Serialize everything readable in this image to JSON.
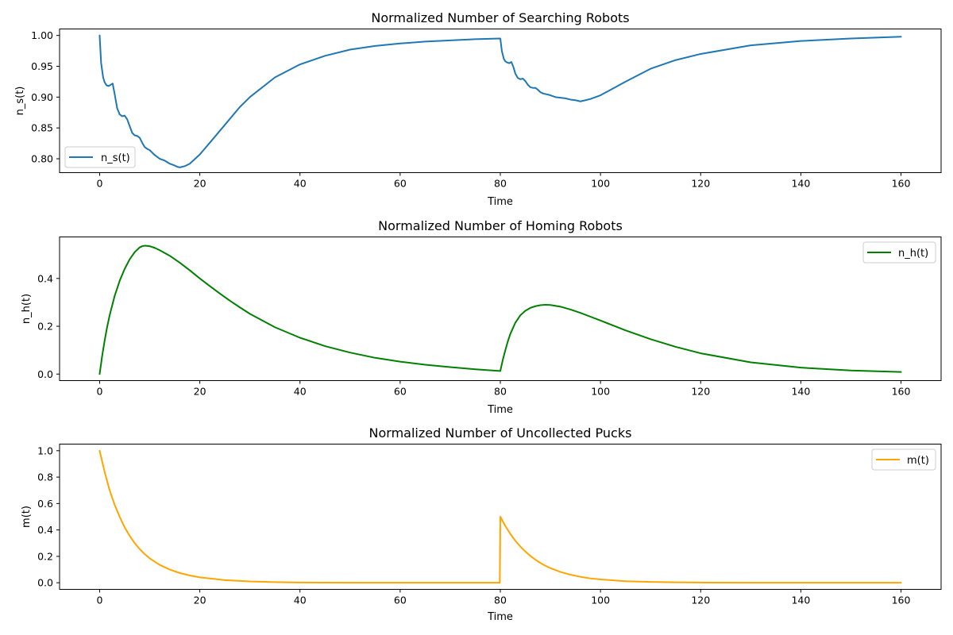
{
  "chart_data": [
    {
      "type": "line",
      "title": "Normalized Number of Searching Robots",
      "xlabel": "Time",
      "ylabel": "n_s(t)",
      "xlim": [
        -8,
        168
      ],
      "ylim": [
        0.7775,
        1.0105
      ],
      "xticks": [
        0,
        20,
        40,
        60,
        80,
        100,
        120,
        140,
        160
      ],
      "yticks": [
        0.8,
        0.85,
        0.9,
        0.95,
        1.0
      ],
      "ytick_labels": [
        "0.80",
        "0.85",
        "0.90",
        "0.95",
        "1.00"
      ],
      "legend": "lower-left",
      "grid": false,
      "series": [
        {
          "name": "n_s(t)",
          "color": "#1f77b4",
          "x": [
            0,
            0.3,
            0.7,
            1,
            1.4,
            1.8,
            2.2,
            2.6,
            3.0,
            3.5,
            4.0,
            4.5,
            5.0,
            5.5,
            6.0,
            6.5,
            7.0,
            7.5,
            8.0,
            8.5,
            9.0,
            9.5,
            10,
            11,
            12,
            13,
            14,
            15,
            15.5,
            16,
            17,
            18,
            20,
            22,
            25,
            28,
            30,
            35,
            40,
            45,
            50,
            55,
            60,
            65,
            70,
            75,
            79.9,
            80,
            80.3,
            80.7,
            81,
            81.4,
            81.8,
            82.2,
            82.6,
            83.0,
            83.5,
            84.0,
            84.5,
            85.0,
            85.5,
            86.0,
            86.5,
            87.0,
            87.5,
            88.0,
            88.5,
            89.0,
            90,
            91,
            92,
            93,
            94,
            95,
            95.5,
            96,
            97,
            98,
            100,
            105,
            110,
            115,
            120,
            130,
            140,
            150,
            160
          ],
          "y": [
            1.0,
            0.955,
            0.932,
            0.924,
            0.919,
            0.918,
            0.92,
            0.922,
            0.905,
            0.882,
            0.872,
            0.869,
            0.87,
            0.864,
            0.853,
            0.842,
            0.838,
            0.837,
            0.834,
            0.826,
            0.819,
            0.816,
            0.814,
            0.806,
            0.8,
            0.797,
            0.792,
            0.789,
            0.787,
            0.786,
            0.788,
            0.792,
            0.807,
            0.826,
            0.855,
            0.884,
            0.9,
            0.932,
            0.953,
            0.967,
            0.977,
            0.983,
            0.987,
            0.99,
            0.992,
            0.994,
            0.995,
            0.995,
            0.975,
            0.962,
            0.958,
            0.956,
            0.955,
            0.957,
            0.949,
            0.938,
            0.931,
            0.929,
            0.93,
            0.926,
            0.92,
            0.916,
            0.915,
            0.915,
            0.912,
            0.908,
            0.906,
            0.905,
            0.903,
            0.9,
            0.899,
            0.898,
            0.896,
            0.895,
            0.894,
            0.893,
            0.895,
            0.897,
            0.903,
            0.925,
            0.946,
            0.96,
            0.97,
            0.984,
            0.991,
            0.995,
            0.998
          ]
        }
      ]
    },
    {
      "type": "line",
      "title": "Normalized Number of Homing Robots",
      "xlabel": "Time",
      "ylabel": "n_h(t)",
      "xlim": [
        -8,
        168
      ],
      "ylim": [
        -0.0273,
        0.5737
      ],
      "xticks": [
        0,
        20,
        40,
        60,
        80,
        100,
        120,
        140,
        160
      ],
      "yticks": [
        0.0,
        0.2,
        0.4
      ],
      "ytick_labels": [
        "0.0",
        "0.2",
        "0.4"
      ],
      "legend": "upper-right",
      "grid": false,
      "series": [
        {
          "name": "n_h(t)",
          "color": "#008000",
          "x": [
            0,
            0.5,
            1,
            1.5,
            2,
            3,
            4,
            5,
            6,
            7,
            8,
            8.5,
            9,
            10,
            11,
            12,
            14,
            16,
            18,
            20,
            22,
            24,
            26,
            28,
            30,
            35,
            40,
            45,
            50,
            55,
            60,
            65,
            70,
            75,
            79.9,
            80,
            80.5,
            81,
            81.5,
            82,
            83,
            84,
            85,
            86,
            87,
            88,
            89,
            90,
            92,
            94,
            96,
            98,
            100,
            105,
            110,
            115,
            120,
            130,
            140,
            150,
            160
          ],
          "y": [
            0.0,
            0.075,
            0.14,
            0.197,
            0.246,
            0.327,
            0.39,
            0.44,
            0.48,
            0.51,
            0.53,
            0.535,
            0.537,
            0.535,
            0.528,
            0.518,
            0.495,
            0.466,
            0.434,
            0.4,
            0.368,
            0.337,
            0.307,
            0.279,
            0.252,
            0.196,
            0.152,
            0.117,
            0.09,
            0.068,
            0.052,
            0.039,
            0.029,
            0.02,
            0.013,
            0.013,
            0.06,
            0.1,
            0.137,
            0.168,
            0.215,
            0.246,
            0.265,
            0.277,
            0.284,
            0.288,
            0.29,
            0.289,
            0.282,
            0.27,
            0.256,
            0.24,
            0.224,
            0.183,
            0.146,
            0.114,
            0.087,
            0.049,
            0.027,
            0.015,
            0.009
          ]
        }
      ]
    },
    {
      "type": "line",
      "title": "Normalized Number of Uncollected Pucks",
      "xlabel": "Time",
      "ylabel": "m(t)",
      "xlim": [
        -8,
        168
      ],
      "ylim": [
        -0.05,
        1.05
      ],
      "xticks": [
        0,
        20,
        40,
        60,
        80,
        100,
        120,
        140,
        160
      ],
      "yticks": [
        0.0,
        0.2,
        0.4,
        0.6,
        0.8,
        1.0
      ],
      "ytick_labels": [
        "0.0",
        "0.2",
        "0.4",
        "0.6",
        "0.8",
        "1.0"
      ],
      "legend": "upper-right",
      "grid": false,
      "series": [
        {
          "name": "m(t)",
          "color": "#ffa500",
          "x": [
            0,
            1,
            2,
            3,
            4,
            5,
            6,
            7,
            8,
            9,
            10,
            12,
            14,
            16,
            18,
            20,
            25,
            30,
            35,
            40,
            50,
            60,
            70,
            79.9,
            80,
            81,
            82,
            83,
            84,
            85,
            86,
            87,
            88,
            89,
            90,
            92,
            94,
            96,
            98,
            100,
            105,
            110,
            115,
            120,
            130,
            140,
            150,
            160
          ],
          "y": [
            1.0,
            0.84,
            0.7,
            0.59,
            0.5,
            0.42,
            0.355,
            0.3,
            0.255,
            0.217,
            0.185,
            0.135,
            0.1,
            0.074,
            0.055,
            0.041,
            0.02,
            0.01,
            0.005,
            0.002,
            0.0005,
            0.0001,
            0.0,
            0.0,
            0.5,
            0.43,
            0.37,
            0.318,
            0.274,
            0.236,
            0.203,
            0.175,
            0.15,
            0.129,
            0.111,
            0.082,
            0.061,
            0.045,
            0.033,
            0.025,
            0.012,
            0.006,
            0.003,
            0.0015,
            0.0004,
            0.0001,
            0.0,
            0.0
          ]
        }
      ]
    }
  ]
}
